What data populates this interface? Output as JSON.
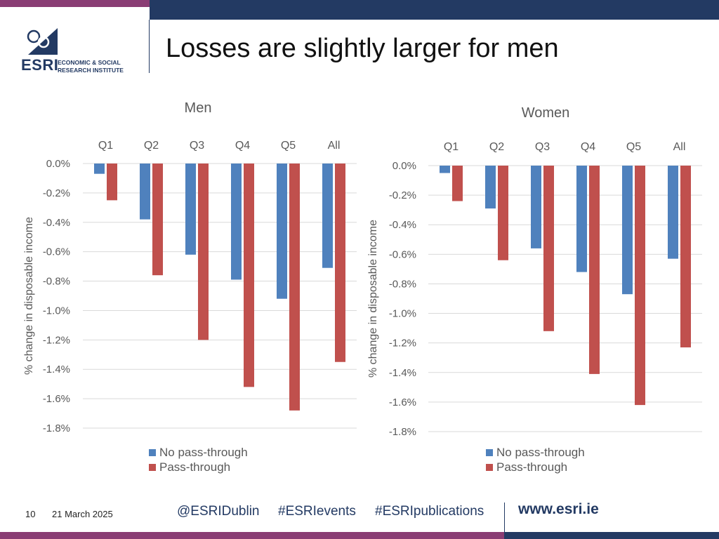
{
  "slide": {
    "title": "Losses are slightly larger for men",
    "page_number": "10",
    "date": "21 March 2025",
    "hashtags": [
      "@ESRIDublin",
      "#ESRIevents",
      "#ESRIpublications"
    ],
    "website": "www.esri.ie",
    "logo": {
      "acronym": "ESRI",
      "line1": "ECONOMIC & SOCIAL",
      "line2": "RESEARCH INSTITUTE"
    }
  },
  "colors": {
    "no_pass": "#4f81bd",
    "pass": "#c0504d",
    "navy": "#233a63",
    "purple": "#8a3d74",
    "grid": "#d9d9d9",
    "text": "#595959"
  },
  "chart_data": [
    {
      "type": "bar",
      "title": "Men",
      "categories": [
        "Q1",
        "Q2",
        "Q3",
        "Q4",
        "Q5",
        "All"
      ],
      "ylabel": "% change in disposable income",
      "ylim": [
        -1.8,
        0
      ],
      "yticks": [
        "0.0%",
        "-0.2%",
        "-0.4%",
        "-0.6%",
        "-0.8%",
        "-1.0%",
        "-1.2%",
        "-1.4%",
        "-1.6%",
        "-1.8%"
      ],
      "legend_position": "bottom",
      "series": [
        {
          "name": "No pass-through",
          "values": [
            -0.07,
            -0.38,
            -0.62,
            -0.79,
            -0.92,
            -0.71
          ]
        },
        {
          "name": "Pass-through",
          "values": [
            -0.25,
            -0.76,
            -1.2,
            -1.52,
            -1.68,
            -1.35
          ]
        }
      ]
    },
    {
      "type": "bar",
      "title": "Women",
      "categories": [
        "Q1",
        "Q2",
        "Q3",
        "Q4",
        "Q5",
        "All"
      ],
      "ylabel": "% change in disposable income",
      "ylim": [
        -1.8,
        0
      ],
      "yticks": [
        "0.0%",
        "-0.2%",
        "-0.4%",
        "-0.6%",
        "-0.8%",
        "-1.0%",
        "-1.2%",
        "-1.4%",
        "-1.6%",
        "-1.8%"
      ],
      "legend_position": "bottom",
      "series": [
        {
          "name": "No pass-through",
          "values": [
            -0.05,
            -0.29,
            -0.56,
            -0.72,
            -0.87,
            -0.63
          ]
        },
        {
          "name": "Pass-through",
          "values": [
            -0.24,
            -0.64,
            -1.12,
            -1.41,
            -1.62,
            -1.23
          ]
        }
      ]
    }
  ]
}
